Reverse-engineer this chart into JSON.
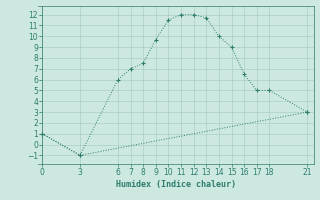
{
  "xlabel": "Humidex (Indice chaleur)",
  "x_ticks": [
    0,
    3,
    6,
    7,
    8,
    9,
    10,
    11,
    12,
    13,
    14,
    15,
    16,
    17,
    18,
    21
  ],
  "upper_curve_x": [
    0,
    3,
    6,
    7,
    8,
    9,
    10,
    11,
    12,
    13,
    14,
    15,
    16,
    17,
    18,
    21
  ],
  "upper_curve_y": [
    1,
    -1,
    6,
    7,
    7.5,
    9.7,
    11.5,
    12,
    12,
    11.7,
    10,
    9,
    6.5,
    5,
    5,
    3
  ],
  "lower_line_x": [
    0,
    3,
    21
  ],
  "lower_line_y": [
    1,
    -1,
    3
  ],
  "ylim": [
    -1.8,
    12.8
  ],
  "xlim": [
    -0.3,
    21.5
  ],
  "y_ticks": [
    -1,
    0,
    1,
    2,
    3,
    4,
    5,
    6,
    7,
    8,
    9,
    10,
    11,
    12
  ],
  "line_color": "#2e7d6e",
  "bg_color": "#cce8e0",
  "grid_color": "#aacfc8"
}
